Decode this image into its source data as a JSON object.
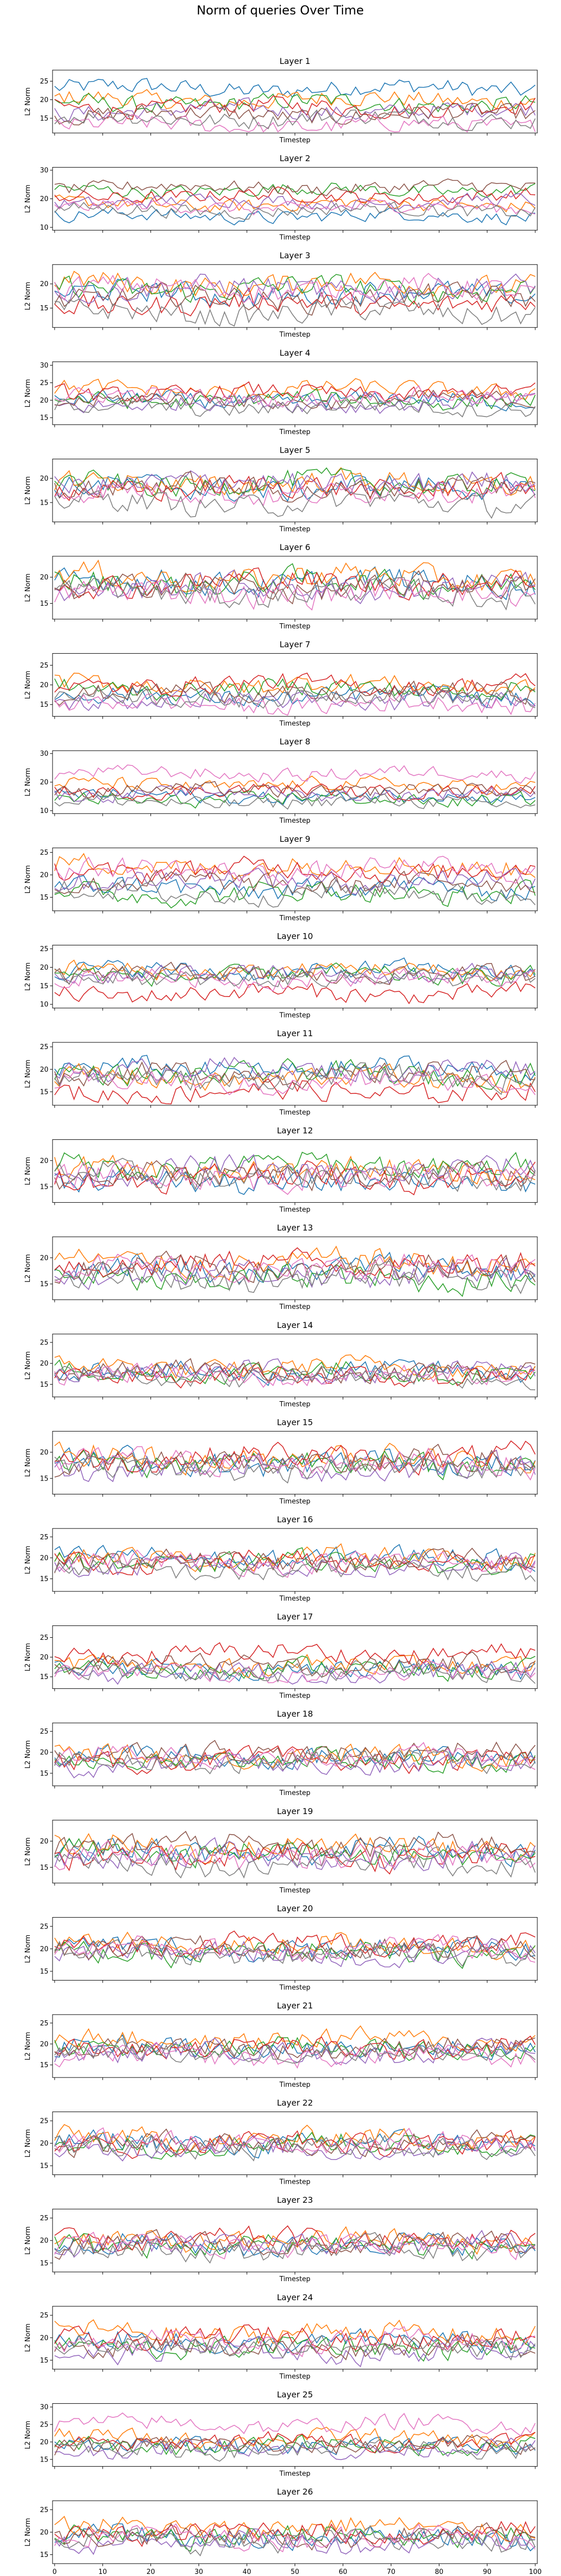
{
  "suptitle": "Norm of queries Over Time",
  "chart_data": {
    "type": "line",
    "title": "Norm of queries Over Time",
    "xlabel": "Timestep",
    "ylabel": "L2 Norm",
    "xlim": [
      0,
      100
    ],
    "xticks": [
      "0",
      "10",
      "20",
      "30",
      "40",
      "50",
      "60",
      "70",
      "80",
      "90",
      "100"
    ],
    "series_colors": [
      "#1f77b4",
      "#ff7f0e",
      "#2ca02c",
      "#d62728",
      "#9467bd",
      "#8c564b",
      "#e377c2",
      "#7f7f7f"
    ],
    "series_count": 8,
    "points_per_series": 100,
    "layers": [
      {
        "title": "Layer 1",
        "yticks": [
          15,
          20,
          25
        ],
        "ylim": [
          11,
          28
        ],
        "means": [
          23,
          20,
          19,
          18,
          17,
          16,
          13,
          15
        ]
      },
      {
        "title": "Layer 2",
        "yticks": [
          10,
          20,
          30
        ],
        "ylim": [
          9,
          31
        ],
        "means": [
          14,
          18,
          23,
          21,
          19,
          24,
          17,
          16
        ]
      },
      {
        "title": "Layer 3",
        "yticks": [
          15,
          20
        ],
        "ylim": [
          11,
          24
        ],
        "means": [
          18,
          20,
          19,
          16,
          19,
          17,
          19,
          14
        ]
      },
      {
        "title": "Layer 4",
        "yticks": [
          15,
          20,
          25,
          30
        ],
        "ylim": [
          13,
          31
        ],
        "means": [
          20,
          23,
          20,
          22,
          19,
          20,
          21,
          18
        ]
      },
      {
        "title": "Layer 5",
        "yticks": [
          15,
          20
        ],
        "ylim": [
          11,
          24
        ],
        "means": [
          18,
          19,
          19,
          18,
          19,
          18,
          17,
          15
        ]
      },
      {
        "title": "Layer 6",
        "yticks": [
          15,
          20
        ],
        "ylim": [
          12,
          24
        ],
        "means": [
          19,
          20,
          19,
          19,
          18,
          18,
          17,
          17
        ]
      },
      {
        "title": "Layer 7",
        "yticks": [
          15,
          20,
          25
        ],
        "ylim": [
          12,
          28
        ],
        "means": [
          17,
          20,
          19,
          20,
          16,
          18,
          15,
          17
        ]
      },
      {
        "title": "Layer 8",
        "yticks": [
          10,
          20,
          30
        ],
        "ylim": [
          9,
          31
        ],
        "means": [
          15,
          19,
          14,
          17,
          16,
          17,
          23,
          13
        ]
      },
      {
        "title": "Layer 9",
        "yticks": [
          15,
          20,
          25
        ],
        "ylim": [
          12,
          26
        ],
        "means": [
          17,
          22,
          16,
          21,
          19,
          18,
          21,
          16
        ]
      },
      {
        "title": "Layer 10",
        "yticks": [
          10,
          15,
          20,
          25
        ],
        "ylim": [
          9,
          26
        ],
        "means": [
          19,
          19,
          18,
          13,
          18,
          18,
          17,
          17
        ]
      },
      {
        "title": "Layer 11",
        "yticks": [
          15,
          20,
          25
        ],
        "ylim": [
          12,
          26
        ],
        "means": [
          20,
          18,
          19,
          15,
          20,
          19,
          17,
          18
        ]
      },
      {
        "title": "Layer 12",
        "yticks": [
          15,
          20
        ],
        "ylim": [
          12,
          24
        ],
        "means": [
          16,
          18,
          19,
          17,
          18,
          17,
          17,
          17
        ]
      },
      {
        "title": "Layer 13",
        "yticks": [
          15,
          20
        ],
        "ylim": [
          12,
          24
        ],
        "means": [
          18,
          19,
          16,
          19,
          17,
          18,
          18,
          16
        ]
      },
      {
        "title": "Layer 14",
        "yticks": [
          15,
          20,
          25
        ],
        "ylim": [
          12,
          27
        ],
        "means": [
          18,
          19,
          18,
          17,
          18,
          18,
          17,
          17
        ]
      },
      {
        "title": "Layer 15",
        "yticks": [
          15,
          20
        ],
        "ylim": [
          12,
          24
        ],
        "means": [
          18,
          19,
          18,
          19,
          17,
          18,
          18,
          17
        ]
      },
      {
        "title": "Layer 16",
        "yticks": [
          15,
          20,
          25
        ],
        "ylim": [
          12,
          27
        ],
        "means": [
          20,
          20,
          19,
          19,
          18,
          19,
          19,
          17
        ]
      },
      {
        "title": "Layer 17",
        "yticks": [
          15,
          20,
          25
        ],
        "ylim": [
          12,
          28
        ],
        "means": [
          17,
          18,
          17,
          21,
          16,
          18,
          16,
          16
        ]
      },
      {
        "title": "Layer 18",
        "yticks": [
          15,
          20,
          25
        ],
        "ylim": [
          12,
          27
        ],
        "means": [
          19,
          19,
          18,
          18,
          17,
          20,
          19,
          18
        ]
      },
      {
        "title": "Layer 19",
        "yticks": [
          15,
          20
        ],
        "ylim": [
          12,
          24
        ],
        "means": [
          18,
          19,
          18,
          17,
          17,
          19,
          17,
          16
        ]
      },
      {
        "title": "Layer 20",
        "yticks": [
          15,
          20,
          25
        ],
        "ylim": [
          13,
          27
        ],
        "means": [
          20,
          21,
          19,
          21,
          19,
          20,
          20,
          19
        ]
      },
      {
        "title": "Layer 21",
        "yticks": [
          15,
          20,
          25
        ],
        "ylim": [
          12,
          27
        ],
        "means": [
          19,
          21,
          19,
          19,
          18,
          19,
          17,
          18
        ]
      },
      {
        "title": "Layer 22",
        "yticks": [
          15,
          20,
          25
        ],
        "ylim": [
          13,
          27
        ],
        "means": [
          20,
          21,
          20,
          20,
          19,
          20,
          20,
          19
        ]
      },
      {
        "title": "Layer 23",
        "yticks": [
          15,
          20,
          25
        ],
        "ylim": [
          13,
          27
        ],
        "means": [
          19,
          20,
          19,
          20,
          19,
          19,
          19,
          18
        ]
      },
      {
        "title": "Layer 24",
        "yticks": [
          15,
          20,
          25
        ],
        "ylim": [
          13,
          27
        ],
        "means": [
          19,
          21,
          18,
          20,
          17,
          18,
          19,
          18
        ]
      },
      {
        "title": "Layer 25",
        "yticks": [
          15,
          20,
          25,
          30
        ],
        "ylim": [
          13,
          31
        ],
        "means": [
          19,
          21,
          19,
          20,
          18,
          19,
          25,
          18
        ]
      },
      {
        "title": "Layer 26",
        "yticks": [
          15,
          20,
          25
        ],
        "ylim": [
          13,
          27
        ],
        "means": [
          19,
          21,
          19,
          20,
          18,
          19,
          19,
          18
        ]
      }
    ]
  }
}
